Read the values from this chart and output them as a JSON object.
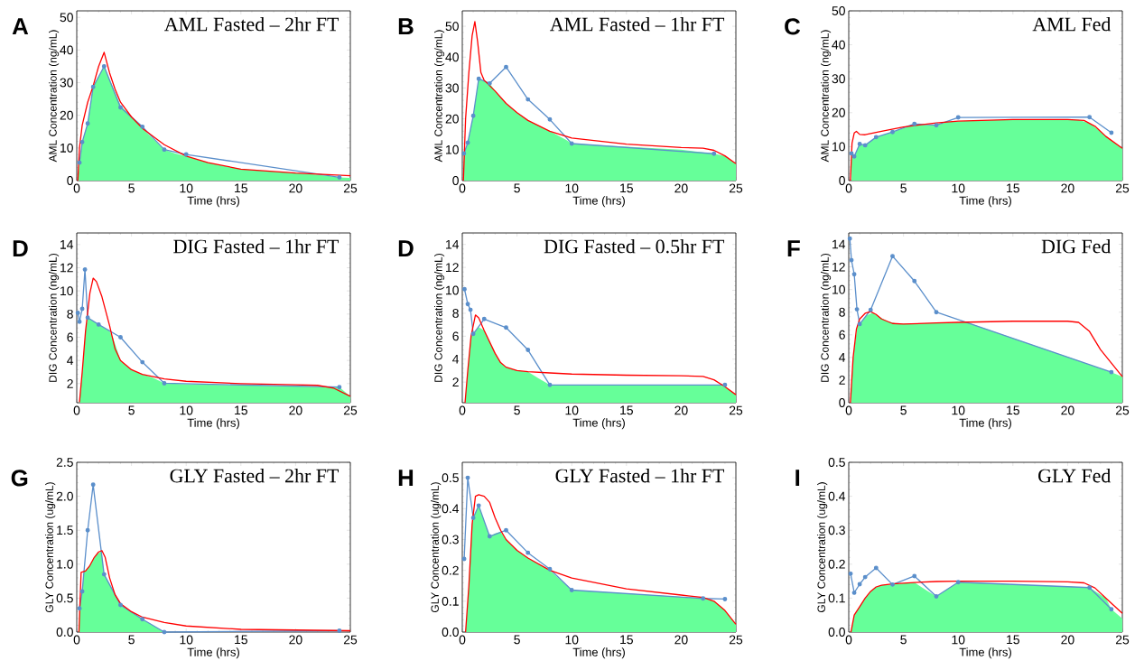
{
  "chart_data": [
    {
      "type": "line",
      "title": "AML Fasted – 2hr FT",
      "xlabel": "Time (hrs)",
      "ylabel": "AML Concentration (ng/mL)",
      "annotations": [
        "A"
      ],
      "xlim": [
        0,
        25
      ],
      "xticks": [
        0,
        5,
        10,
        15,
        20,
        25
      ],
      "ylim": [
        0,
        52
      ],
      "yticks": [
        0,
        10,
        20,
        30,
        40,
        50
      ],
      "series": [
        {
          "type": "area",
          "color": "#66ff99",
          "x": [
            0.1,
            0.25,
            0.5,
            1,
            1.5,
            2.5,
            3,
            4,
            6,
            8,
            9,
            10,
            12,
            15,
            20,
            22,
            24,
            25
          ],
          "values": [
            0,
            5.5,
            11.8,
            17.5,
            28.7,
            35,
            31,
            23,
            16,
            9.5,
            8.3,
            7.5,
            5.5,
            3.5,
            2.3,
            1.8,
            1,
            0.8
          ]
        },
        {
          "type": "line",
          "color": "#ff0000",
          "x": [
            0.1,
            0.25,
            0.5,
            1,
            1.5,
            2,
            2.5,
            3,
            3.5,
            4,
            5,
            6,
            8,
            10,
            12,
            15,
            20,
            25
          ],
          "values": [
            0,
            10,
            17,
            24,
            29,
            35,
            39.3,
            33,
            28,
            24,
            19.5,
            16,
            11,
            7.5,
            5.5,
            3.5,
            2.3,
            1.5
          ]
        },
        {
          "type": "line",
          "color": "#5b8fcb",
          "marker": "circle",
          "x": [
            0.25,
            0.5,
            1,
            1.5,
            2.5,
            4,
            6,
            8,
            10,
            24
          ],
          "values": [
            5.5,
            11.8,
            17.5,
            28.7,
            35,
            22.4,
            16.5,
            9.5,
            8,
            1
          ]
        }
      ]
    },
    {
      "type": "line",
      "title": "AML Fasted – 1hr FT",
      "xlabel": "Time (hrs)",
      "ylabel": "AML Concentration (ng/mL)",
      "annotations": [
        "B"
      ],
      "xlim": [
        0,
        25
      ],
      "xticks": [
        0,
        5,
        10,
        15,
        20,
        25
      ],
      "ylim": [
        0,
        55
      ],
      "yticks": [
        0,
        10,
        20,
        30,
        40,
        50
      ],
      "series": [
        {
          "type": "area",
          "color": "#66ff99",
          "x": [
            0.1,
            0.15,
            0.5,
            1,
            1.5,
            2.5,
            3,
            4,
            5,
            6,
            8,
            9.5,
            10,
            15,
            20,
            23,
            24,
            25
          ],
          "values": [
            0,
            8.8,
            12.3,
            21,
            33,
            31.5,
            29,
            25,
            22,
            19.5,
            16,
            13.2,
            12,
            11,
            10,
            8.7,
            8,
            5.5
          ]
        },
        {
          "type": "line",
          "color": "#ff0000",
          "x": [
            0.1,
            0.3,
            0.6,
            0.9,
            1.15,
            1.4,
            1.7,
            2,
            3,
            4,
            5,
            6,
            8,
            10,
            15,
            20,
            22,
            23,
            24,
            25
          ],
          "values": [
            0,
            20,
            35,
            47,
            51.5,
            45,
            35,
            32.5,
            29,
            25,
            22,
            19.5,
            16,
            13.8,
            11.8,
            10.7,
            10.5,
            9.8,
            8,
            5.5
          ]
        },
        {
          "type": "line",
          "color": "#5b8fcb",
          "marker": "circle",
          "x": [
            0.15,
            0.5,
            1,
            1.5,
            2.5,
            4,
            6,
            8,
            10,
            23
          ],
          "values": [
            8.8,
            12.3,
            21,
            33,
            31.5,
            36.8,
            26.3,
            19.8,
            12,
            8.7
          ]
        }
      ]
    },
    {
      "type": "line",
      "title": "AML Fed",
      "xlabel": "Time (hrs)",
      "ylabel": "AML Concentration (ng/mL)",
      "annotations": [
        "C"
      ],
      "xlim": [
        0,
        25
      ],
      "xticks": [
        0,
        5,
        10,
        15,
        20,
        25
      ],
      "ylim": [
        0,
        50
      ],
      "yticks": [
        0,
        10,
        20,
        30,
        40,
        50
      ],
      "series": [
        {
          "type": "area",
          "color": "#66ff99",
          "x": [
            0.25,
            0.5,
            1,
            1.5,
            2.5,
            4,
            6,
            8,
            9,
            11,
            14,
            18,
            21,
            22,
            23,
            24,
            25
          ],
          "values": [
            8,
            7.1,
            10.8,
            10.4,
            12.8,
            14.3,
            16.5,
            16.3,
            17.2,
            17.6,
            17.9,
            18,
            17.9,
            16.9,
            14.5,
            11.8,
            9.5
          ]
        },
        {
          "type": "line",
          "color": "#ff0000",
          "x": [
            0.15,
            0.3,
            0.5,
            0.7,
            1,
            1.5,
            3,
            5,
            8,
            10,
            15,
            20,
            21.5,
            22.5,
            23.5,
            25
          ],
          "values": [
            0,
            11,
            14,
            14.5,
            13.6,
            13.5,
            14.5,
            15.8,
            17,
            17.5,
            18,
            18,
            17.7,
            16,
            13,
            9.5
          ]
        },
        {
          "type": "line",
          "color": "#5b8fcb",
          "marker": "circle",
          "x": [
            0.25,
            0.5,
            1,
            1.5,
            2.5,
            4,
            6,
            8,
            10,
            22,
            24
          ],
          "values": [
            8,
            7.1,
            10.8,
            10.4,
            12.8,
            14.3,
            16.7,
            16.3,
            18.6,
            18.7,
            14.1
          ]
        }
      ]
    },
    {
      "type": "line",
      "title": "DIG Fasted – 1hr FT",
      "xlabel": "Time (hrs)",
      "ylabel": "DIG Concentration (ng/mL)",
      "annotations": [
        "D"
      ],
      "xlim": [
        0,
        25
      ],
      "xticks": [
        0,
        5,
        10,
        15,
        20,
        25
      ],
      "ylim": [
        0.35,
        15
      ],
      "yticks": [
        2,
        4,
        6,
        8,
        10,
        12,
        14
      ],
      "series": [
        {
          "type": "area",
          "color": "#66ff99",
          "x": [
            0.25,
            0.5,
            0.8,
            1,
            2,
            3,
            3.3,
            4,
            5,
            6,
            7,
            8,
            10,
            15,
            20,
            24,
            25
          ],
          "values": [
            0.4,
            3,
            6.5,
            7.7,
            7.1,
            6.5,
            6,
            4,
            3.2,
            2.8,
            2.5,
            2.03,
            1.95,
            1.85,
            1.75,
            1.7,
            0.9
          ]
        },
        {
          "type": "line",
          "color": "#ff0000",
          "x": [
            0.25,
            0.5,
            0.8,
            1.2,
            1.5,
            1.8,
            2.3,
            3,
            3.5,
            4,
            5,
            6,
            8,
            10,
            15,
            20,
            22,
            23.5,
            25
          ],
          "values": [
            0.4,
            3,
            6.5,
            9.8,
            11.1,
            10.8,
            9.5,
            7,
            5,
            4,
            3.2,
            2.8,
            2.4,
            2.2,
            2,
            1.9,
            1.85,
            1.6,
            0.9
          ]
        },
        {
          "type": "line",
          "color": "#5b8fcb",
          "marker": "circle",
          "x": [
            0.1,
            0.25,
            0.5,
            0.75,
            1,
            2,
            4,
            6,
            8,
            24
          ],
          "values": [
            8.1,
            7.35,
            8.45,
            11.85,
            7.7,
            7.1,
            6,
            3.85,
            2.03,
            1.7
          ]
        }
      ]
    },
    {
      "type": "line",
      "title": "DIG Fasted – 0.5hr FT",
      "xlabel": "Time (hrs)",
      "ylabel": "DIG Concentration (ng/mL)",
      "annotations": [
        "D"
      ],
      "xlim": [
        0,
        25
      ],
      "xticks": [
        0,
        5,
        10,
        15,
        20,
        25
      ],
      "ylim": [
        0.2,
        15
      ],
      "yticks": [
        2,
        4,
        6,
        8,
        10,
        12,
        14
      ],
      "series": [
        {
          "type": "area",
          "color": "#66ff99",
          "x": [
            0.25,
            0.5,
            0.8,
            1,
            1.5,
            2,
            3,
            3.5,
            4,
            5,
            6,
            7,
            8,
            15,
            23.5,
            24,
            25
          ],
          "values": [
            0.2,
            3,
            6,
            6.2,
            6.8,
            6.5,
            4.5,
            3.7,
            3.3,
            3,
            2.9,
            2.3,
            1.75,
            1.75,
            1.75,
            1.6,
            0.9
          ]
        },
        {
          "type": "line",
          "color": "#ff0000",
          "x": [
            0.25,
            0.5,
            0.8,
            1.2,
            1.5,
            2,
            3,
            3.5,
            4,
            5,
            6,
            8,
            10,
            15,
            20,
            22,
            23,
            24,
            25
          ],
          "values": [
            0.2,
            3,
            6,
            7.85,
            7.6,
            6.5,
            4.5,
            3.7,
            3.3,
            3,
            2.9,
            2.8,
            2.7,
            2.6,
            2.55,
            2.5,
            2.2,
            1.6,
            0.9
          ]
        },
        {
          "type": "line",
          "color": "#5b8fcb",
          "marker": "circle",
          "x": [
            0.2,
            0.5,
            0.75,
            1,
            2,
            4,
            6,
            8,
            24
          ],
          "values": [
            10.1,
            8.8,
            8.3,
            6.2,
            7.5,
            6.75,
            4.8,
            1.75,
            1.75
          ]
        }
      ]
    },
    {
      "type": "line",
      "title": "DIG Fed",
      "xlabel": "Time (hrs)",
      "ylabel": "DIG Concentration (ng/mL)",
      "annotations": [
        "F"
      ],
      "xlim": [
        0,
        25
      ],
      "xticks": [
        0,
        5,
        10,
        15,
        20,
        25
      ],
      "ylim": [
        0,
        15
      ],
      "yticks": [
        0,
        2,
        4,
        6,
        8,
        10,
        12,
        14
      ],
      "series": [
        {
          "type": "area",
          "color": "#66ff99",
          "x": [
            0.2,
            0.45,
            0.8,
            1.1,
            1.6,
            2.2,
            2.7,
            3.5,
            4.5,
            6,
            9,
            10.8,
            15,
            20,
            24,
            25
          ],
          "values": [
            0.8,
            4.4,
            6.8,
            7.07,
            7.7,
            7.95,
            7.64,
            7.2,
            6.97,
            7,
            7.07,
            7.1,
            5.7,
            4.05,
            2.7,
            2.3
          ]
        },
        {
          "type": "line",
          "color": "#ff0000",
          "x": [
            0.15,
            0.4,
            0.7,
            1,
            1.5,
            2,
            2.5,
            3,
            4,
            5,
            8,
            10,
            15,
            20,
            21,
            22,
            23,
            24,
            25
          ],
          "values": [
            0,
            4,
            6.5,
            7.4,
            7.9,
            8.05,
            7.8,
            7.4,
            7,
            6.95,
            7.05,
            7.1,
            7.2,
            7.2,
            7.1,
            6.3,
            4.7,
            3.5,
            2.3
          ]
        },
        {
          "type": "line",
          "color": "#5b8fcb",
          "marker": "circle",
          "x": [
            0.1,
            0.25,
            0.5,
            0.75,
            1,
            2,
            4,
            6,
            8,
            24
          ],
          "values": [
            14.5,
            12.6,
            11.35,
            8.25,
            6.95,
            8.2,
            12.95,
            10.75,
            8,
            2.7
          ]
        }
      ]
    },
    {
      "type": "line",
      "title": "GLY Fasted – 2hr FT",
      "xlabel": "Time (hrs)",
      "ylabel": "GLY Concentration (ug/mL)",
      "annotations": [
        "G"
      ],
      "xlim": [
        0,
        25
      ],
      "xticks": [
        0,
        5,
        10,
        15,
        20,
        25
      ],
      "ylim": [
        0,
        2.5
      ],
      "yticks": [
        {
          "value": 0,
          "label": "0.0"
        },
        0.5,
        {
          "value": 1,
          "label": "1.0"
        },
        1.5,
        {
          "value": 2,
          "label": "2.0"
        },
        2.5
      ],
      "series": [
        {
          "type": "area",
          "color": "#66ff99",
          "x": [
            0.25,
            0.5,
            0.65,
            1,
            1.4,
            1.8,
            2.27,
            2.5,
            4,
            6,
            8
          ],
          "values": [
            0.35,
            0.6,
            0.88,
            0.94,
            1.04,
            1.14,
            1.19,
            0.85,
            0.4,
            0.19,
            0
          ]
        },
        {
          "type": "line",
          "color": "#ff0000",
          "x": [
            0.2,
            0.4,
            0.8,
            1.2,
            1.6,
            2,
            2.3,
            2.6,
            3,
            3.5,
            4,
            5,
            6,
            8,
            10,
            15,
            20,
            25
          ],
          "values": [
            0,
            0.88,
            0.9,
            0.98,
            1.1,
            1.18,
            1.2,
            1.1,
            0.8,
            0.55,
            0.42,
            0.3,
            0.22,
            0.14,
            0.09,
            0.04,
            0.03,
            0.02
          ]
        },
        {
          "type": "line",
          "color": "#5b8fcb",
          "marker": "circle",
          "x": [
            0.25,
            0.5,
            1,
            1.5,
            2.5,
            4,
            6,
            8,
            24
          ],
          "values": [
            0.35,
            0.6,
            1.5,
            2.17,
            0.85,
            0.4,
            0.19,
            0,
            0.02
          ]
        }
      ]
    },
    {
      "type": "line",
      "title": "GLY Fasted – 1hr FT",
      "xlabel": "Time (hrs)",
      "ylabel": "GLY Concentration (ug/mL)",
      "annotations": [
        "H"
      ],
      "xlim": [
        0,
        25
      ],
      "xticks": [
        0,
        5,
        10,
        15,
        20,
        25
      ],
      "ylim": [
        0,
        0.55
      ],
      "yticks": [
        {
          "value": 0,
          "label": "0.0"
        },
        0.1,
        0.2,
        0.3,
        0.4,
        0.5
      ],
      "series": [
        {
          "type": "area",
          "color": "#66ff99",
          "x": [
            0.3,
            0.6,
            0.9,
            1,
            1.5,
            2.5,
            3,
            3.5,
            4,
            5,
            6,
            8,
            10,
            15,
            20,
            22,
            23,
            24,
            25
          ],
          "values": [
            0,
            0.15,
            0.35,
            0.37,
            0.41,
            0.31,
            0.32,
            0.325,
            0.3,
            0.265,
            0.24,
            0.2,
            0.136,
            0.125,
            0.114,
            0.109,
            0.1,
            0.07,
            0.025
          ]
        },
        {
          "type": "line",
          "color": "#ff0000",
          "x": [
            0.3,
            0.6,
            0.9,
            1.2,
            1.5,
            2,
            2.5,
            3,
            3.5,
            4,
            5,
            6,
            8,
            10,
            15,
            20,
            22,
            23,
            24,
            25
          ],
          "values": [
            0,
            0.15,
            0.35,
            0.44,
            0.445,
            0.44,
            0.42,
            0.37,
            0.33,
            0.3,
            0.265,
            0.24,
            0.2,
            0.175,
            0.14,
            0.12,
            0.112,
            0.1,
            0.07,
            0.025
          ]
        },
        {
          "type": "line",
          "color": "#5b8fcb",
          "marker": "circle",
          "x": [
            0.17,
            0.5,
            1,
            1.5,
            2.5,
            4,
            6,
            8,
            10,
            22,
            24
          ],
          "values": [
            0.237,
            0.5,
            0.37,
            0.41,
            0.31,
            0.33,
            0.257,
            0.204,
            0.136,
            0.109,
            0.107
          ]
        }
      ]
    },
    {
      "type": "line",
      "title": "GLY  Fed",
      "xlabel": "Time (hrs)",
      "ylabel": "GLY Concentration (ug/mL)",
      "annotations": [
        "I"
      ],
      "xlim": [
        0,
        25
      ],
      "xticks": [
        0,
        5,
        10,
        15,
        20,
        25
      ],
      "ylim": [
        0,
        0.5
      ],
      "yticks": [
        {
          "value": 0,
          "label": "0.0"
        },
        0.1,
        0.2,
        0.3,
        0.4,
        0.5
      ],
      "series": [
        {
          "type": "area",
          "color": "#66ff99",
          "x": [
            0.2,
            0.5,
            1,
            1.5,
            2,
            2.5,
            3,
            4,
            6,
            7,
            8,
            10,
            15,
            20,
            22,
            23.5,
            24,
            25
          ],
          "values": [
            0,
            0.05,
            0.075,
            0.1,
            0.12,
            0.133,
            0.138,
            0.14,
            0.146,
            0.125,
            0.105,
            0.147,
            0.14,
            0.134,
            0.131,
            0.1,
            0.067,
            0.04
          ]
        },
        {
          "type": "line",
          "color": "#ff0000",
          "x": [
            0.2,
            0.5,
            1,
            1.5,
            2,
            2.5,
            3,
            4,
            6,
            8,
            10,
            15,
            20,
            21.5,
            22.5,
            23.5,
            25
          ],
          "values": [
            0,
            0.05,
            0.075,
            0.1,
            0.12,
            0.133,
            0.138,
            0.142,
            0.146,
            0.149,
            0.15,
            0.15,
            0.148,
            0.145,
            0.13,
            0.1,
            0.055
          ]
        },
        {
          "type": "line",
          "color": "#5b8fcb",
          "marker": "circle",
          "x": [
            0.17,
            0.5,
            1,
            1.5,
            2.5,
            4,
            6,
            8,
            10,
            22,
            24
          ],
          "values": [
            0.172,
            0.116,
            0.141,
            0.162,
            0.189,
            0.14,
            0.165,
            0.105,
            0.147,
            0.131,
            0.067
          ]
        }
      ]
    }
  ]
}
